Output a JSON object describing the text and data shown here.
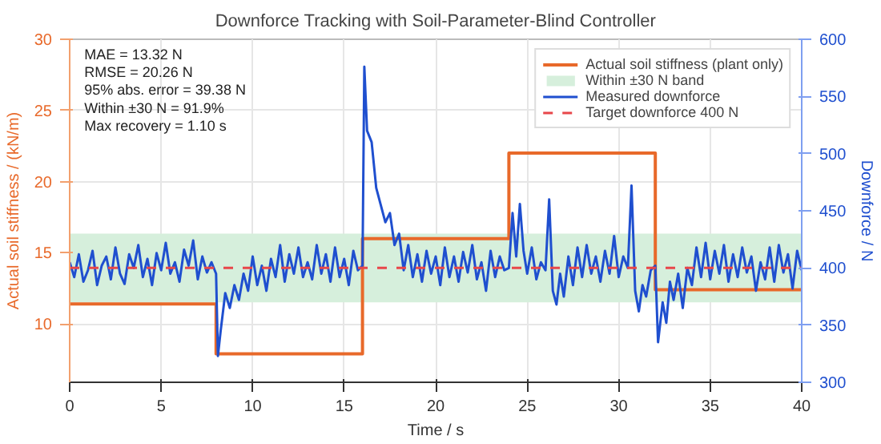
{
  "chart_data": {
    "type": "line",
    "title": "Downforce Tracking with Soil-Parameter-Blind Controller",
    "xlabel": "Time / s",
    "ylabel": "Actual soil stiffness / (kN/m)",
    "y2label": "Downforce / N",
    "xlim": [
      0,
      40
    ],
    "xticks": [
      0,
      5,
      10,
      15,
      20,
      25,
      30,
      35,
      40
    ],
    "ylim": [
      5.9,
      30
    ],
    "yticks": [
      10,
      15,
      20,
      25,
      30
    ],
    "y2lim": [
      300,
      600
    ],
    "y2ticks": [
      300,
      350,
      400,
      450,
      500,
      550,
      600
    ],
    "grid": true,
    "legend": "top right",
    "line_style": "solid",
    "marker": "none",
    "annotations": [
      "MAE = 13.32 N",
      "RMSE = 20.26 N",
      "95% abs. error = 39.38 N",
      "Within ±30 N = 91.9%",
      "Max recovery = 1.10 s"
    ],
    "bands": [
      {
        "axis": "y2",
        "from": 370,
        "to": 430,
        "label": "Within ±30 N band",
        "color": "#d6efdc"
      }
    ],
    "ref_lines": [
      {
        "axis": "y2",
        "value": 400,
        "label": "Target downforce 400 N",
        "color": "#e8474a",
        "line_style": "dashed"
      }
    ],
    "series": [
      {
        "name": "Actual soil stiffness (plant only)",
        "color": "#e8692a",
        "x": [
          0,
          8,
          8,
          16,
          16,
          24,
          24,
          32,
          32,
          40
        ],
        "values": [
          11.4,
          11.4,
          7.9,
          7.9,
          16.0,
          16.0,
          22.0,
          22.0,
          12.4,
          12.4
        ]
      },
      {
        "name": "Measured downforce",
        "color": "#1f4fcf",
        "axis": "y2",
        "x": [
          0,
          0.25,
          0.5,
          0.75,
          1,
          1.25,
          1.5,
          1.75,
          2,
          2.25,
          2.5,
          2.75,
          3,
          3.25,
          3.5,
          3.75,
          4,
          4.25,
          4.5,
          4.75,
          5,
          5.25,
          5.5,
          5.75,
          6,
          6.25,
          6.5,
          6.75,
          7,
          7.25,
          7.5,
          7.75,
          8,
          8.1,
          8.25,
          8.5,
          8.75,
          9,
          9.25,
          9.5,
          9.75,
          10,
          10.25,
          10.5,
          10.75,
          11,
          11.25,
          11.5,
          11.75,
          12,
          12.25,
          12.5,
          12.75,
          13,
          13.25,
          13.5,
          13.75,
          14,
          14.25,
          14.5,
          14.75,
          15,
          15.25,
          15.5,
          15.75,
          16,
          16.1,
          16.25,
          16.5,
          16.75,
          17,
          17.25,
          17.5,
          17.75,
          18,
          18.25,
          18.5,
          18.75,
          19,
          19.25,
          19.5,
          19.75,
          20,
          20.25,
          20.5,
          20.75,
          21,
          21.25,
          21.5,
          21.75,
          22,
          22.25,
          22.5,
          22.75,
          23,
          23.25,
          23.5,
          23.75,
          24,
          24.2,
          24.4,
          24.6,
          24.8,
          25,
          25.25,
          25.5,
          25.75,
          26,
          26.2,
          26.4,
          26.6,
          26.8,
          27,
          27.25,
          27.5,
          27.75,
          28,
          28.25,
          28.5,
          28.75,
          29,
          29.25,
          29.5,
          29.75,
          30,
          30.25,
          30.5,
          30.7,
          30.9,
          31.1,
          31.3,
          31.5,
          31.75,
          32,
          32.15,
          32.4,
          32.6,
          32.8,
          33,
          33.25,
          33.5,
          33.75,
          34,
          34.25,
          34.5,
          34.75,
          35,
          35.25,
          35.5,
          35.75,
          36,
          36.25,
          36.5,
          36.75,
          37,
          37.25,
          37.5,
          37.75,
          38,
          38.25,
          38.5,
          38.75,
          39,
          39.25,
          39.5,
          39.75,
          40
        ],
        "values": [
          405,
          392,
          412,
          388,
          398,
          415,
          385,
          402,
          410,
          390,
          418,
          395,
          386,
          412,
          400,
          420,
          392,
          408,
          385,
          413,
          398,
          422,
          395,
          405,
          388,
          416,
          402,
          424,
          390,
          410,
          396,
          405,
          395,
          323,
          345,
          378,
          365,
          385,
          372,
          395,
          380,
          410,
          385,
          402,
          380,
          408,
          392,
          420,
          388,
          412,
          395,
          418,
          392,
          405,
          390,
          420,
          395,
          412,
          388,
          418,
          392,
          408,
          385,
          415,
          398,
          402,
          576,
          520,
          510,
          470,
          455,
          440,
          448,
          420,
          430,
          398,
          420,
          392,
          412,
          388,
          415,
          395,
          410,
          385,
          418,
          392,
          410,
          388,
          414,
          396,
          420,
          390,
          405,
          380,
          415,
          392,
          410,
          398,
          400,
          448,
          410,
          456,
          415,
          395,
          418,
          390,
          405,
          398,
          460,
          380,
          368,
          395,
          375,
          410,
          385,
          418,
          392,
          420,
          395,
          410,
          388,
          415,
          395,
          428,
          392,
          410,
          400,
          472,
          380,
          362,
          385,
          375,
          398,
          402,
          335,
          370,
          352,
          388,
          372,
          395,
          365,
          400,
          385,
          418,
          392,
          422,
          390,
          415,
          395,
          420,
          388,
          412,
          392,
          418,
          396,
          410,
          380,
          405,
          390,
          418,
          388,
          420,
          396,
          412,
          382,
          415,
          398
        ]
      }
    ]
  }
}
